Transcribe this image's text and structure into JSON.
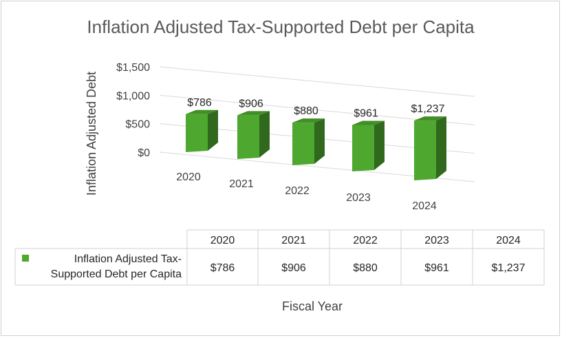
{
  "chart_data": {
    "type": "bar",
    "style": "3d-column",
    "title": "Inflation Adjusted Tax-Supported Debt per Capita",
    "xlabel": "Fiscal Year",
    "ylabel": "Inflation Adjusted Debt",
    "ylim": [
      0,
      1500
    ],
    "yticks": [
      "$0",
      "$500",
      "$1,000",
      "$1,500"
    ],
    "categories": [
      "2020",
      "2021",
      "2022",
      "2023",
      "2024"
    ],
    "series": [
      {
        "name": "Inflation Adjusted Tax-Supported Debt per Capita",
        "values": [
          786,
          906,
          880,
          961,
          1237
        ],
        "labels": [
          "$786",
          "$906",
          "$880",
          "$961",
          "$1,237"
        ],
        "color": "#4ea72e"
      }
    ],
    "grid": true,
    "data_table": true,
    "legend_key_color": "#4ea72e",
    "series_label_lines": [
      "Inflation Adjusted Tax-",
      "Supported Debt per Capita"
    ]
  }
}
